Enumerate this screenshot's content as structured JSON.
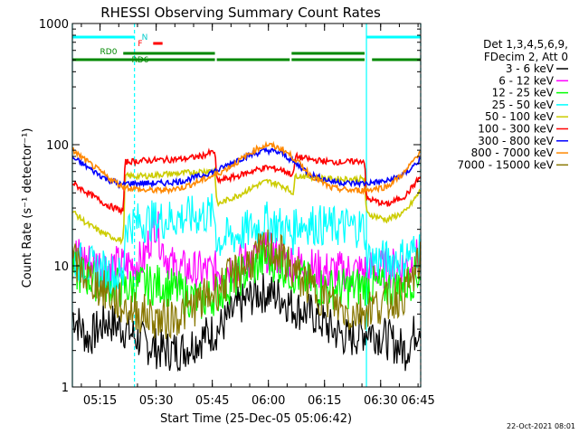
{
  "chart_data": {
    "type": "line",
    "title": "RHESSI Observing Summary Count Rates",
    "xlabel": "Start Time (25-Dec-05 05:06:42)",
    "ylabel": "Count Rate (s⁻¹ detector⁻¹)",
    "yscale": "log",
    "ylim": [
      1,
      1000
    ],
    "xlim_minutes": [
      5.9,
      99.0
    ],
    "x_tick_labels": [
      "05:15",
      "05:30",
      "05:45",
      "06:00",
      "06:15",
      "06:30",
      "06:45"
    ],
    "x_tick_minutes": [
      13.3,
      28.3,
      43.3,
      58.3,
      73.3,
      88.3,
      103.3
    ],
    "y_tick_labels": [
      "1",
      "10",
      "100",
      "1000"
    ],
    "y_tick_values": [
      1,
      10,
      100,
      1000
    ],
    "grid": false,
    "legend_position": "right",
    "legend_header": [
      "Det 1,3,4,5,6,9,",
      "FDecim 2, Att 0"
    ],
    "footer_date": "22-Oct-2021 08:01",
    "flag_labels": {
      "night": "N",
      "flare": "F",
      "rd0": "RD0",
      "rd6": "RD6"
    },
    "night_boundaries_minutes": [
      5.9,
      22.5,
      84.5,
      99.0
    ],
    "flag_bars": [
      {
        "name": "N",
        "color": "#00ffff",
        "segments": [
          [
            5.9,
            22.5
          ],
          [
            84.5,
            99.0
          ]
        ]
      },
      {
        "name": "F",
        "color": "#ff0000",
        "segments": [
          [
            27.5,
            30.0
          ]
        ]
      },
      {
        "name": "RD0",
        "color": "#008800",
        "segments": [
          [
            19.5,
            44.0
          ],
          [
            64.5,
            84.0
          ]
        ]
      },
      {
        "name": "RD6",
        "color": "#008800",
        "segments": [
          [
            5.9,
            44.0
          ],
          [
            44.5,
            64.0
          ],
          [
            64.5,
            84.0
          ],
          [
            86.0,
            99.0
          ]
        ]
      }
    ],
    "series": [
      {
        "name": "3 - 6 keV",
        "color": "#000000",
        "x": [
          6,
          10,
          15,
          20,
          25,
          30,
          35,
          40,
          45,
          50,
          55,
          58,
          62,
          65,
          70,
          75,
          80,
          85,
          90,
          95,
          99
        ],
        "y": [
          4,
          2.5,
          3.5,
          3,
          2.3,
          2,
          2,
          2.5,
          3,
          4.5,
          6,
          6,
          5.5,
          4.5,
          4,
          3,
          2.5,
          3,
          2.5,
          2,
          3.5
        ]
      },
      {
        "name": "6 - 12 keV",
        "color": "#ff00ff",
        "x": [
          6,
          10,
          15,
          20,
          25,
          28,
          30,
          33,
          38,
          44,
          48,
          52,
          58,
          64,
          68,
          73,
          78,
          84,
          90,
          95,
          99
        ],
        "y": [
          13,
          11,
          10,
          10,
          11,
          24,
          14,
          9.5,
          9,
          9,
          10,
          11,
          13,
          11,
          10,
          9,
          9,
          9,
          9.5,
          10,
          12
        ]
      },
      {
        "name": "12 - 25 keV",
        "color": "#00ff00",
        "x": [
          6,
          10,
          15,
          20,
          25,
          30,
          35,
          40,
          45,
          50,
          55,
          58,
          62,
          65,
          70,
          75,
          80,
          85,
          90,
          95,
          99
        ],
        "y": [
          9,
          8,
          7,
          6.5,
          7,
          7,
          6,
          5,
          6,
          8,
          10,
          11.5,
          10,
          8.5,
          7,
          6.5,
          6.5,
          7,
          6.5,
          7,
          9
        ]
      },
      {
        "name": "25 - 50 keV",
        "color": "#00ffff",
        "x": [
          6,
          10,
          15,
          19.5,
          20,
          25,
          30,
          35,
          40,
          44,
          44.5,
          50,
          55,
          58,
          62,
          65,
          65.5,
          70,
          75,
          80,
          84,
          84.5,
          90,
          95,
          99
        ],
        "y": [
          11.5,
          10,
          9,
          8,
          22,
          23,
          24,
          25,
          26,
          27,
          16,
          18,
          21,
          23,
          21,
          18,
          23,
          22,
          21,
          21,
          21,
          11.5,
          11,
          12,
          14
        ]
      },
      {
        "name": "50 - 100 keV",
        "color": "#cccc00",
        "x": [
          6,
          10,
          15,
          19.5,
          20,
          25,
          30,
          35,
          40,
          44,
          44.5,
          50,
          55,
          58,
          62,
          65,
          65.5,
          70,
          75,
          80,
          84,
          84.5,
          90,
          95,
          99
        ],
        "y": [
          28,
          22,
          18,
          16,
          55,
          55,
          57,
          58,
          60,
          62,
          32,
          38,
          46,
          50,
          46,
          40,
          56,
          54,
          52,
          52,
          52,
          27,
          24,
          28,
          42
        ]
      },
      {
        "name": "100 - 300 keV",
        "color": "#ff0000",
        "x": [
          6,
          10,
          15,
          19.5,
          20,
          25,
          30,
          35,
          40,
          44,
          44.5,
          50,
          55,
          58,
          62,
          65,
          65.5,
          70,
          75,
          80,
          84,
          84.5,
          90,
          95,
          99
        ],
        "y": [
          48,
          40,
          32,
          28,
          72,
          74,
          75,
          76,
          80,
          88,
          50,
          55,
          62,
          65,
          62,
          56,
          80,
          75,
          72,
          72,
          74,
          36,
          32,
          38,
          55
        ]
      },
      {
        "name": "300 - 800 keV",
        "color": "#0000ff",
        "x": [
          6,
          10,
          15,
          19.5,
          20,
          25,
          30,
          35,
          40,
          45,
          50,
          55,
          58,
          62,
          65,
          70,
          75,
          80,
          84,
          84.5,
          90,
          95,
          99
        ],
        "y": [
          78,
          65,
          52,
          46,
          48,
          48,
          48,
          50,
          55,
          62,
          75,
          85,
          90,
          85,
          72,
          56,
          50,
          48,
          48,
          48,
          50,
          58,
          76
        ]
      },
      {
        "name": "800 - 7000 keV",
        "color": "#ff8800",
        "x": [
          6,
          10,
          15,
          19.5,
          25,
          30,
          35,
          40,
          45,
          50,
          55,
          58,
          62,
          65,
          70,
          75,
          80,
          84,
          90,
          95,
          99
        ],
        "y": [
          90,
          72,
          55,
          45,
          42,
          42,
          44,
          50,
          58,
          72,
          92,
          100,
          92,
          78,
          55,
          44,
          42,
          42,
          45,
          60,
          90
        ]
      },
      {
        "name": "7000 - 15000 keV",
        "color": "#887700",
        "x": [
          6,
          10,
          15,
          20,
          25,
          30,
          35,
          40,
          45,
          50,
          55,
          58,
          62,
          65,
          70,
          75,
          80,
          85,
          90,
          95,
          99
        ],
        "y": [
          11,
          8,
          6,
          4.5,
          4,
          3.5,
          4,
          5,
          6.5,
          9,
          12,
          14,
          12,
          9,
          6.5,
          5,
          4,
          4.5,
          5,
          6,
          11
        ]
      }
    ]
  }
}
